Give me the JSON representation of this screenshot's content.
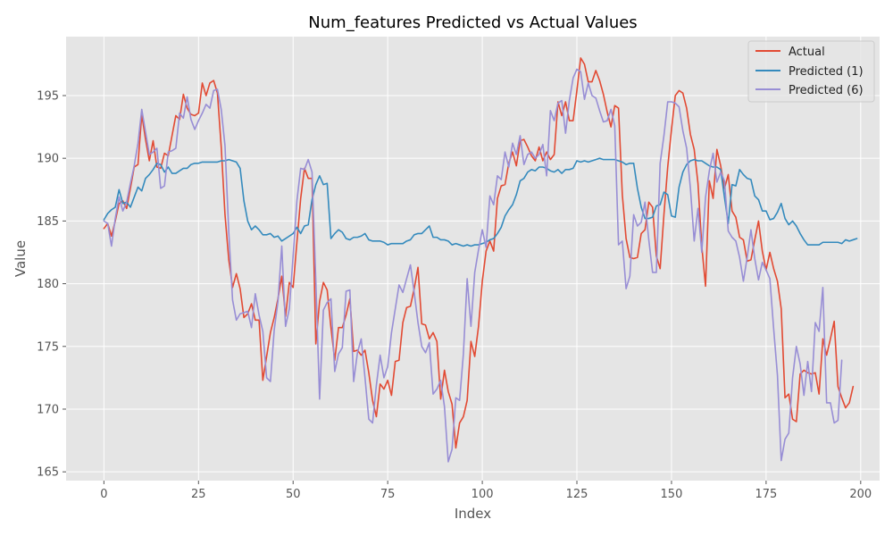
{
  "chart_data": {
    "type": "line",
    "title": "Num_features Predicted vs Actual Values",
    "xlabel": "Index",
    "ylabel": "Value",
    "xlim": [
      -10,
      205
    ],
    "ylim": [
      164.3,
      199.7
    ],
    "xticks": [
      0,
      25,
      50,
      75,
      100,
      125,
      150,
      175,
      200
    ],
    "yticks": [
      165,
      170,
      175,
      180,
      185,
      190,
      195
    ],
    "grid": true,
    "legend_position": "top-right",
    "series": [
      {
        "name": "Actual",
        "color": "#E24A33",
        "values": [
          184.4,
          184.8,
          183.8,
          185.0,
          186.4,
          186.6,
          186.0,
          187.6,
          189.3,
          189.5,
          193.5,
          191.5,
          189.8,
          191.4,
          189.3,
          189.2,
          190.4,
          190.2,
          191.8,
          193.4,
          193.1,
          195.1,
          194.0,
          193.5,
          193.4,
          193.6,
          196.0,
          195.0,
          196.0,
          196.2,
          195.2,
          190.9,
          185.5,
          181.9,
          179.7,
          180.8,
          179.6,
          177.3,
          177.6,
          178.4,
          177.1,
          177.1,
          172.3,
          174.2,
          176.1,
          177.3,
          178.8,
          180.6,
          177.4,
          180.1,
          179.7,
          183.3,
          186.8,
          189.2,
          188.4,
          188.4,
          175.2,
          178.6,
          180.1,
          179.5,
          176.5,
          173.9,
          176.5,
          176.5,
          177.5,
          178.8,
          174.6,
          174.7,
          174.3,
          174.7,
          172.9,
          170.7,
          169.4,
          172.0,
          171.6,
          172.3,
          171.1,
          173.8,
          173.9,
          176.9,
          178.1,
          178.2,
          179.6,
          181.3,
          176.8,
          176.7,
          175.6,
          176.1,
          175.4,
          170.8,
          173.1,
          171.4,
          170.4,
          166.9,
          168.9,
          169.4,
          170.7,
          175.4,
          174.2,
          176.6,
          180.2,
          182.6,
          183.4,
          182.6,
          186.8,
          187.8,
          187.9,
          189.6,
          190.5,
          189.4,
          191.4,
          191.5,
          190.9,
          190.2,
          189.8,
          190.9,
          189.8,
          190.5,
          189.9,
          190.3,
          194.5,
          193.4,
          194.5,
          193.0,
          193.0,
          195.4,
          198.0,
          197.5,
          196.1,
          196.1,
          197.0,
          196.2,
          195.1,
          193.7,
          192.5,
          194.2,
          194.0,
          187.1,
          183.6,
          182.1,
          182.0,
          182.1,
          184.0,
          184.3,
          186.5,
          186.1,
          182.2,
          181.2,
          185.5,
          189.3,
          192.3,
          195.0,
          195.4,
          195.2,
          194.0,
          191.9,
          190.7,
          188.0,
          183.0,
          179.8,
          188.2,
          186.8,
          190.7,
          189.4,
          187.6,
          188.7,
          185.8,
          185.3,
          183.7,
          183.5,
          181.8,
          181.9,
          183.5,
          185.0,
          182.6,
          181.1,
          182.5,
          181.2,
          180.2,
          178.0,
          170.9,
          171.2,
          169.2,
          169.0,
          172.8,
          173.1,
          172.9,
          172.8,
          172.9,
          171.2,
          175.6,
          174.3,
          175.6,
          177.0,
          171.8,
          170.9,
          170.1,
          170.5,
          171.8
        ]
      },
      {
        "name": "Predicted (1)",
        "color": "#348ABD",
        "values": [
          185.1,
          185.6,
          185.9,
          186.1,
          187.5,
          186.4,
          186.5,
          186.1,
          186.9,
          187.7,
          187.4,
          188.4,
          188.7,
          189.1,
          189.6,
          189.5,
          188.9,
          189.3,
          188.8,
          188.8,
          189.0,
          189.2,
          189.2,
          189.5,
          189.6,
          189.6,
          189.7,
          189.7,
          189.7,
          189.7,
          189.7,
          189.8,
          189.8,
          189.9,
          189.8,
          189.7,
          189.2,
          186.6,
          185.0,
          184.3,
          184.6,
          184.3,
          183.9,
          183.9,
          184.0,
          183.7,
          183.8,
          183.4,
          183.6,
          183.8,
          184.0,
          184.5,
          184.0,
          184.6,
          184.7,
          186.7,
          187.9,
          188.6,
          187.9,
          188.0,
          183.6,
          184.0,
          184.3,
          184.1,
          183.6,
          183.5,
          183.7,
          183.7,
          183.8,
          184.0,
          183.5,
          183.4,
          183.4,
          183.4,
          183.3,
          183.1,
          183.2,
          183.2,
          183.2,
          183.2,
          183.4,
          183.5,
          183.9,
          184.0,
          184.0,
          184.3,
          184.6,
          183.7,
          183.7,
          183.5,
          183.5,
          183.4,
          183.1,
          183.2,
          183.1,
          183.0,
          183.1,
          183.0,
          183.1,
          183.1,
          183.2,
          183.3,
          183.5,
          183.6,
          184.0,
          184.5,
          185.4,
          185.9,
          186.3,
          187.1,
          188.2,
          188.4,
          188.9,
          189.1,
          189.0,
          189.3,
          189.3,
          189.2,
          189.0,
          188.9,
          189.1,
          188.8,
          189.1,
          189.1,
          189.2,
          189.8,
          189.7,
          189.8,
          189.7,
          189.8,
          189.9,
          190.0,
          189.9,
          189.9,
          189.9,
          189.9,
          189.8,
          189.7,
          189.5,
          189.6,
          189.6,
          187.6,
          186.1,
          185.2,
          185.2,
          185.3,
          186.2,
          186.3,
          187.3,
          187.1,
          185.4,
          185.3,
          187.7,
          188.9,
          189.5,
          189.8,
          189.9,
          189.8,
          189.8,
          189.6,
          189.4,
          189.3,
          189.3,
          189.1,
          186.9,
          184.8,
          187.9,
          187.8,
          189.1,
          188.7,
          188.4,
          188.3,
          187.0,
          186.7,
          185.8,
          185.8,
          185.1,
          185.2,
          185.7,
          186.4,
          185.2,
          184.7,
          185.0,
          184.6,
          184.0,
          183.5,
          183.1,
          183.1,
          183.1,
          183.1,
          183.3,
          183.3,
          183.3,
          183.3,
          183.3,
          183.2,
          183.5,
          183.4,
          183.5,
          183.6
        ]
      },
      {
        "name": "Predicted (6)",
        "color": "#988ED5",
        "values": [
          185.0,
          184.8,
          183.0,
          185.2,
          186.9,
          185.8,
          186.5,
          188.0,
          189.4,
          191.2,
          193.9,
          192.1,
          190.3,
          190.5,
          190.8,
          187.6,
          187.8,
          190.5,
          190.6,
          190.8,
          193.6,
          193.2,
          194.9,
          193.1,
          192.3,
          193.0,
          193.6,
          194.3,
          194.0,
          195.4,
          195.5,
          193.9,
          191.0,
          184.1,
          178.7,
          177.1,
          177.6,
          177.7,
          177.8,
          176.5,
          179.2,
          177.5,
          176.2,
          172.5,
          172.2,
          176.3,
          178.6,
          183.0,
          176.6,
          178.0,
          182.2,
          186.6,
          189.2,
          189.1,
          189.9,
          188.9,
          180.2,
          170.8,
          177.9,
          178.5,
          178.8,
          173.0,
          174.4,
          174.9,
          179.4,
          179.5,
          172.2,
          174.5,
          175.6,
          172.5,
          169.2,
          168.9,
          171.9,
          174.3,
          172.5,
          173.4,
          176.1,
          178.0,
          179.9,
          179.3,
          180.4,
          181.5,
          179.3,
          176.9,
          175.0,
          174.5,
          175.3,
          171.2,
          171.6,
          172.3,
          170.2,
          165.8,
          166.8,
          170.9,
          170.7,
          174.4,
          180.4,
          176.6,
          180.9,
          182.7,
          184.3,
          182.9,
          187.0,
          186.3,
          188.6,
          188.3,
          190.5,
          189.3,
          191.2,
          190.3,
          191.8,
          189.5,
          190.3,
          190.5,
          190.0,
          190.3,
          191.1,
          188.6,
          193.8,
          193.0,
          194.4,
          194.6,
          192.0,
          194.6,
          196.4,
          197.1,
          196.9,
          194.7,
          196.0,
          195.0,
          194.8,
          193.8,
          192.9,
          193.0,
          193.9,
          192.6,
          183.1,
          183.4,
          179.6,
          180.6,
          185.5,
          184.6,
          184.9,
          186.5,
          183.5,
          180.9,
          180.9,
          189.6,
          191.8,
          194.5,
          194.5,
          194.4,
          194.1,
          192.2,
          190.8,
          187.6,
          183.4,
          186.0,
          182.5,
          186.9,
          189.0,
          190.4,
          188.1,
          188.9,
          188.2,
          184.2,
          183.7,
          183.4,
          182.1,
          180.2,
          182.1,
          184.3,
          182.0,
          180.3,
          181.7,
          181.1,
          180.4,
          176.4,
          172.7,
          165.9,
          167.6,
          168.1,
          172.5,
          175.0,
          173.6,
          171.1,
          173.8,
          171.4,
          176.9,
          176.2,
          179.7,
          170.5,
          170.5,
          168.9,
          169.1,
          173.9
        ]
      }
    ]
  }
}
